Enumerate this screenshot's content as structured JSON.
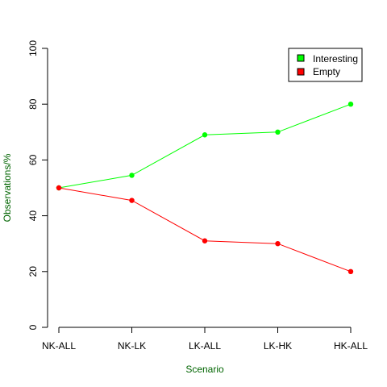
{
  "chart_data": {
    "type": "line",
    "title": "",
    "xlabel": "Scenario",
    "ylabel": "Observations/%",
    "categories": [
      "NK-ALL",
      "NK-LK",
      "LK-ALL",
      "LK-HK",
      "HK-ALL"
    ],
    "ylim": [
      0,
      100
    ],
    "yticks": [
      0,
      20,
      40,
      60,
      80,
      100
    ],
    "grid": false,
    "legend_position": "top-right",
    "series": [
      {
        "name": "Interesting",
        "color": "#00ff00",
        "values": [
          50,
          54.5,
          69,
          70,
          80
        ]
      },
      {
        "name": "Empty",
        "color": "#ff0000",
        "values": [
          50,
          45.5,
          31,
          30,
          20
        ]
      }
    ],
    "label_color": "#006400"
  }
}
